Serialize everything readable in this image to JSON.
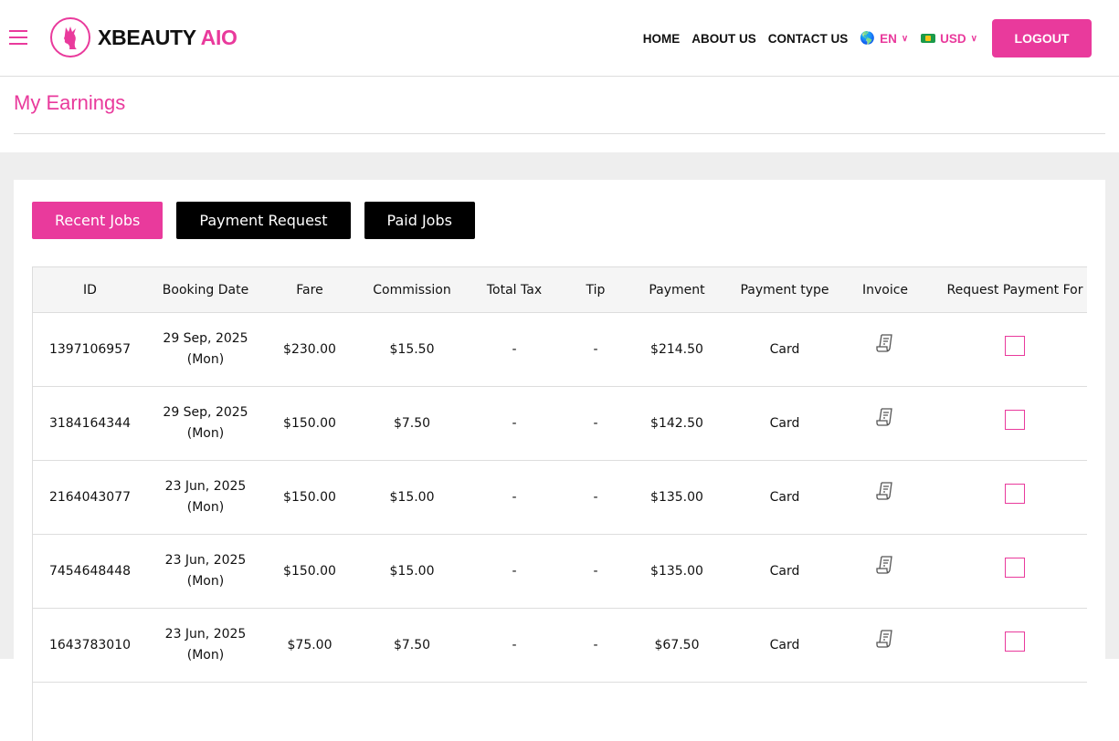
{
  "brand": {
    "name": "XBEAUTY",
    "suffix": "AIO",
    "accent": "#e93a9c"
  },
  "nav": {
    "home": "HOME",
    "about": "ABOUT US",
    "contact": "CONTACT US",
    "language": "EN",
    "currency": "USD",
    "logout": "LOGOUT"
  },
  "page": {
    "title": "My Earnings"
  },
  "tabs": [
    {
      "label": "Recent Jobs",
      "active": true
    },
    {
      "label": "Payment Request"
    },
    {
      "label": "Paid Jobs"
    }
  ],
  "table": {
    "headers": [
      "ID",
      "Booking Date",
      "Fare",
      "Commission",
      "Total Tax",
      "Tip",
      "Payment",
      "Payment type",
      "Invoice",
      "Request Payment For"
    ],
    "rows": [
      {
        "id": "1397106957",
        "date": "29 Sep, 2025",
        "day": "(Mon)",
        "fare": "$230.00",
        "commission": "$15.50",
        "tax": "-",
        "tip": "-",
        "payment": "$214.50",
        "type": "Card"
      },
      {
        "id": "3184164344",
        "date": "29 Sep, 2025",
        "day": "(Mon)",
        "fare": "$150.00",
        "commission": "$7.50",
        "tax": "-",
        "tip": "-",
        "payment": "$142.50",
        "type": "Card"
      },
      {
        "id": "2164043077",
        "date": "23 Jun, 2025",
        "day": "(Mon)",
        "fare": "$150.00",
        "commission": "$15.00",
        "tax": "-",
        "tip": "-",
        "payment": "$135.00",
        "type": "Card"
      },
      {
        "id": "7454648448",
        "date": "23 Jun, 2025",
        "day": "(Mon)",
        "fare": "$150.00",
        "commission": "$15.00",
        "tax": "-",
        "tip": "-",
        "payment": "$135.00",
        "type": "Card"
      },
      {
        "id": "1643783010",
        "date": "23 Jun, 2025",
        "day": "(Mon)",
        "fare": "$75.00",
        "commission": "$7.50",
        "tax": "-",
        "tip": "-",
        "payment": "$67.50",
        "type": "Card"
      }
    ]
  }
}
